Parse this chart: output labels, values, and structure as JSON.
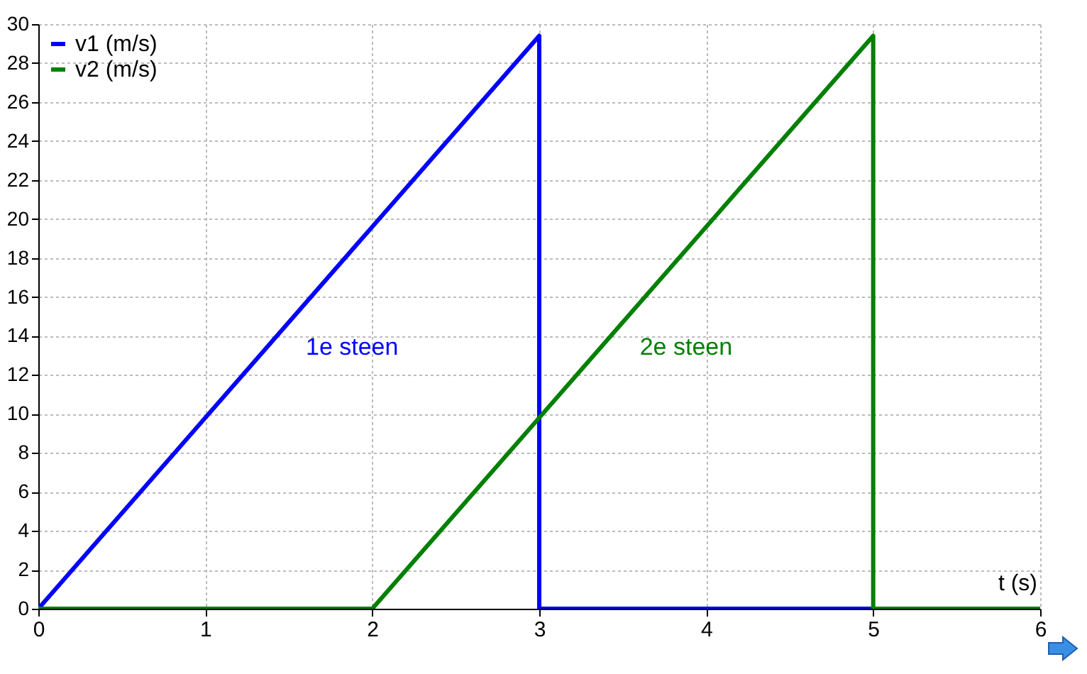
{
  "chart_data": {
    "type": "line",
    "xlabel": "t (s)",
    "xlim": [
      0,
      6
    ],
    "xticks": [
      0,
      1,
      2,
      3,
      4,
      5,
      6
    ],
    "ylim": [
      0,
      30
    ],
    "yticks": [
      0,
      2,
      4,
      6,
      8,
      10,
      12,
      14,
      16,
      18,
      20,
      22,
      24,
      26,
      28,
      30
    ],
    "grid": true,
    "legend": "top left",
    "series": [
      {
        "name": "v1 (m/s)",
        "color": "#0000ff",
        "x": [
          0,
          3,
          3,
          6
        ],
        "values": [
          0,
          29.4,
          0,
          0
        ]
      },
      {
        "name": "v2 (m/s)",
        "color": "#008000",
        "x": [
          0,
          2,
          5,
          5,
          6
        ],
        "values": [
          0,
          0,
          29.4,
          0,
          0
        ]
      }
    ],
    "annotations": [
      "1e steen",
      "2e steen"
    ]
  }
}
